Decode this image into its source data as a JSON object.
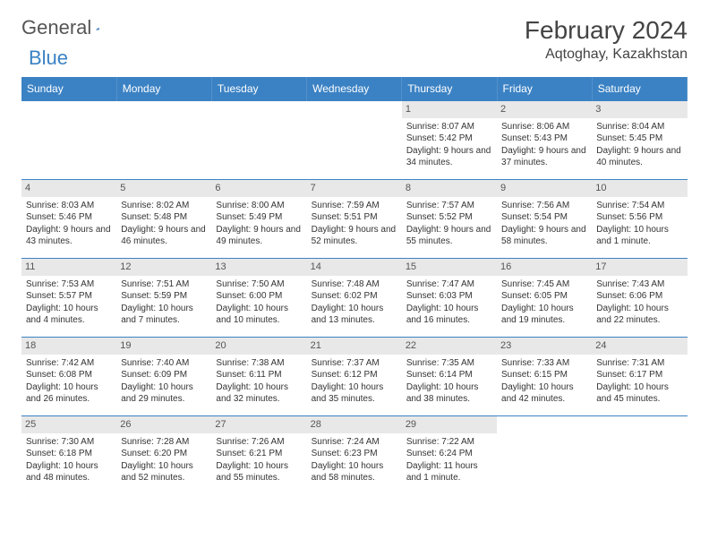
{
  "logo": {
    "text1": "General",
    "text2": "Blue"
  },
  "title": "February 2024",
  "location": "Aqtoghay, Kazakhstan",
  "colors": {
    "header_bg": "#3b82c4",
    "header_text": "#ffffff",
    "daynum_bg": "#e8e8e8",
    "border": "#3b82c4",
    "body_text": "#333333"
  },
  "day_headers": [
    "Sunday",
    "Monday",
    "Tuesday",
    "Wednesday",
    "Thursday",
    "Friday",
    "Saturday"
  ],
  "weeks": [
    [
      {
        "n": "",
        "sr": "",
        "ss": "",
        "dl": ""
      },
      {
        "n": "",
        "sr": "",
        "ss": "",
        "dl": ""
      },
      {
        "n": "",
        "sr": "",
        "ss": "",
        "dl": ""
      },
      {
        "n": "",
        "sr": "",
        "ss": "",
        "dl": ""
      },
      {
        "n": "1",
        "sr": "Sunrise: 8:07 AM",
        "ss": "Sunset: 5:42 PM",
        "dl": "Daylight: 9 hours and 34 minutes."
      },
      {
        "n": "2",
        "sr": "Sunrise: 8:06 AM",
        "ss": "Sunset: 5:43 PM",
        "dl": "Daylight: 9 hours and 37 minutes."
      },
      {
        "n": "3",
        "sr": "Sunrise: 8:04 AM",
        "ss": "Sunset: 5:45 PM",
        "dl": "Daylight: 9 hours and 40 minutes."
      }
    ],
    [
      {
        "n": "4",
        "sr": "Sunrise: 8:03 AM",
        "ss": "Sunset: 5:46 PM",
        "dl": "Daylight: 9 hours and 43 minutes."
      },
      {
        "n": "5",
        "sr": "Sunrise: 8:02 AM",
        "ss": "Sunset: 5:48 PM",
        "dl": "Daylight: 9 hours and 46 minutes."
      },
      {
        "n": "6",
        "sr": "Sunrise: 8:00 AM",
        "ss": "Sunset: 5:49 PM",
        "dl": "Daylight: 9 hours and 49 minutes."
      },
      {
        "n": "7",
        "sr": "Sunrise: 7:59 AM",
        "ss": "Sunset: 5:51 PM",
        "dl": "Daylight: 9 hours and 52 minutes."
      },
      {
        "n": "8",
        "sr": "Sunrise: 7:57 AM",
        "ss": "Sunset: 5:52 PM",
        "dl": "Daylight: 9 hours and 55 minutes."
      },
      {
        "n": "9",
        "sr": "Sunrise: 7:56 AM",
        "ss": "Sunset: 5:54 PM",
        "dl": "Daylight: 9 hours and 58 minutes."
      },
      {
        "n": "10",
        "sr": "Sunrise: 7:54 AM",
        "ss": "Sunset: 5:56 PM",
        "dl": "Daylight: 10 hours and 1 minute."
      }
    ],
    [
      {
        "n": "11",
        "sr": "Sunrise: 7:53 AM",
        "ss": "Sunset: 5:57 PM",
        "dl": "Daylight: 10 hours and 4 minutes."
      },
      {
        "n": "12",
        "sr": "Sunrise: 7:51 AM",
        "ss": "Sunset: 5:59 PM",
        "dl": "Daylight: 10 hours and 7 minutes."
      },
      {
        "n": "13",
        "sr": "Sunrise: 7:50 AM",
        "ss": "Sunset: 6:00 PM",
        "dl": "Daylight: 10 hours and 10 minutes."
      },
      {
        "n": "14",
        "sr": "Sunrise: 7:48 AM",
        "ss": "Sunset: 6:02 PM",
        "dl": "Daylight: 10 hours and 13 minutes."
      },
      {
        "n": "15",
        "sr": "Sunrise: 7:47 AM",
        "ss": "Sunset: 6:03 PM",
        "dl": "Daylight: 10 hours and 16 minutes."
      },
      {
        "n": "16",
        "sr": "Sunrise: 7:45 AM",
        "ss": "Sunset: 6:05 PM",
        "dl": "Daylight: 10 hours and 19 minutes."
      },
      {
        "n": "17",
        "sr": "Sunrise: 7:43 AM",
        "ss": "Sunset: 6:06 PM",
        "dl": "Daylight: 10 hours and 22 minutes."
      }
    ],
    [
      {
        "n": "18",
        "sr": "Sunrise: 7:42 AM",
        "ss": "Sunset: 6:08 PM",
        "dl": "Daylight: 10 hours and 26 minutes."
      },
      {
        "n": "19",
        "sr": "Sunrise: 7:40 AM",
        "ss": "Sunset: 6:09 PM",
        "dl": "Daylight: 10 hours and 29 minutes."
      },
      {
        "n": "20",
        "sr": "Sunrise: 7:38 AM",
        "ss": "Sunset: 6:11 PM",
        "dl": "Daylight: 10 hours and 32 minutes."
      },
      {
        "n": "21",
        "sr": "Sunrise: 7:37 AM",
        "ss": "Sunset: 6:12 PM",
        "dl": "Daylight: 10 hours and 35 minutes."
      },
      {
        "n": "22",
        "sr": "Sunrise: 7:35 AM",
        "ss": "Sunset: 6:14 PM",
        "dl": "Daylight: 10 hours and 38 minutes."
      },
      {
        "n": "23",
        "sr": "Sunrise: 7:33 AM",
        "ss": "Sunset: 6:15 PM",
        "dl": "Daylight: 10 hours and 42 minutes."
      },
      {
        "n": "24",
        "sr": "Sunrise: 7:31 AM",
        "ss": "Sunset: 6:17 PM",
        "dl": "Daylight: 10 hours and 45 minutes."
      }
    ],
    [
      {
        "n": "25",
        "sr": "Sunrise: 7:30 AM",
        "ss": "Sunset: 6:18 PM",
        "dl": "Daylight: 10 hours and 48 minutes."
      },
      {
        "n": "26",
        "sr": "Sunrise: 7:28 AM",
        "ss": "Sunset: 6:20 PM",
        "dl": "Daylight: 10 hours and 52 minutes."
      },
      {
        "n": "27",
        "sr": "Sunrise: 7:26 AM",
        "ss": "Sunset: 6:21 PM",
        "dl": "Daylight: 10 hours and 55 minutes."
      },
      {
        "n": "28",
        "sr": "Sunrise: 7:24 AM",
        "ss": "Sunset: 6:23 PM",
        "dl": "Daylight: 10 hours and 58 minutes."
      },
      {
        "n": "29",
        "sr": "Sunrise: 7:22 AM",
        "ss": "Sunset: 6:24 PM",
        "dl": "Daylight: 11 hours and 1 minute."
      },
      {
        "n": "",
        "sr": "",
        "ss": "",
        "dl": ""
      },
      {
        "n": "",
        "sr": "",
        "ss": "",
        "dl": ""
      }
    ]
  ]
}
